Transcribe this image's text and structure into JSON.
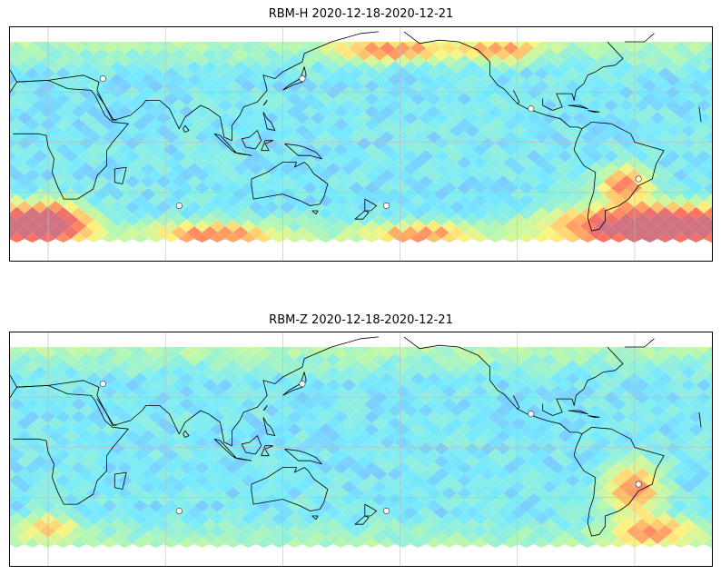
{
  "panels": [
    {
      "title": "RBM-H 2020-12-18-2020-12-21",
      "hotspots": [
        {
          "lon": -40,
          "lat": -50,
          "level": 1.0,
          "spread_lon": 45,
          "spread_lat": 12
        },
        {
          "lon": 10,
          "lat": -48,
          "level": 0.9,
          "spread_lon": 18,
          "spread_lat": 10
        },
        {
          "lon": -55,
          "lat": -25,
          "level": 0.6,
          "spread_lon": 12,
          "spread_lat": 10
        },
        {
          "lon": 95,
          "lat": -55,
          "level": 0.5,
          "spread_lon": 30,
          "spread_lat": 6
        },
        {
          "lon": -160,
          "lat": -55,
          "level": 0.45,
          "spread_lon": 25,
          "spread_lat": 6
        },
        {
          "lon": -175,
          "lat": 55,
          "level": 0.5,
          "spread_lon": 25,
          "spread_lat": 6
        },
        {
          "lon": -120,
          "lat": 55,
          "level": 0.45,
          "spread_lon": 20,
          "spread_lat": 6
        }
      ]
    },
    {
      "title": "RBM-Z 2020-12-18-2020-12-21",
      "hotspots": [
        {
          "lon": -50,
          "lat": -25,
          "level": 0.55,
          "spread_lon": 14,
          "spread_lat": 16
        },
        {
          "lon": -40,
          "lat": -50,
          "level": 0.45,
          "spread_lon": 20,
          "spread_lat": 8
        },
        {
          "lon": 10,
          "lat": -48,
          "level": 0.35,
          "spread_lon": 15,
          "spread_lat": 8
        }
      ]
    }
  ],
  "colormap": [
    "#6f6bff",
    "#5fe6ff",
    "#aef7a0",
    "#fff36b",
    "#ff9a4a",
    "#ff5a4a",
    "#c85a6a"
  ],
  "map": {
    "center_lon": 170,
    "lat_range": [
      -60,
      60
    ],
    "grid_lons": [
      10,
      70,
      130,
      -170,
      -110,
      -50,
      10
    ],
    "grid_lats": [
      -30,
      0,
      30
    ],
    "station_markers": [
      {
        "lon": 38,
        "lat": 38
      },
      {
        "lon": 140,
        "lat": 38
      },
      {
        "lon": 77,
        "lat": -38
      },
      {
        "lon": -177,
        "lat": -38
      },
      {
        "lon": -103,
        "lat": 20
      },
      {
        "lon": -48,
        "lat": -22
      }
    ]
  }
}
